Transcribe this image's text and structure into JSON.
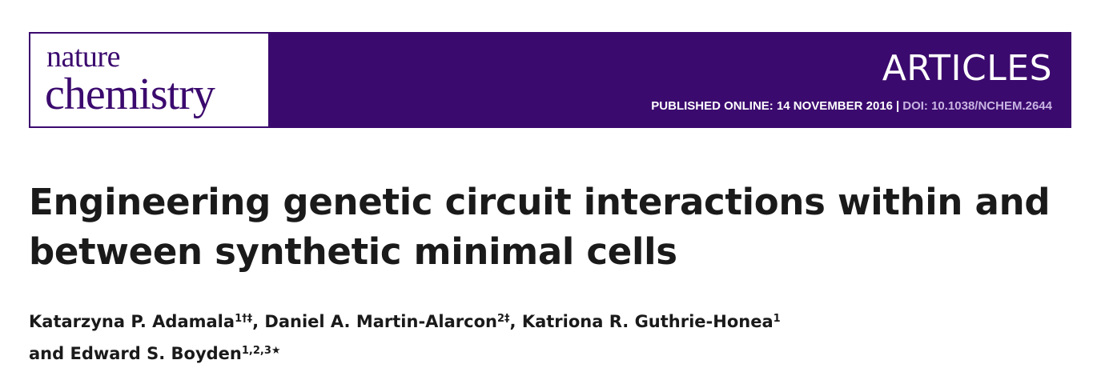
{
  "journal": {
    "name_line1": "nature",
    "name_line2": "chemistry"
  },
  "header": {
    "section": "ARTICLES",
    "published": "PUBLISHED ONLINE: 14 NOVEMBER 2016",
    "separator": "|",
    "doi": "DOI: 10.1038/NCHEM.2644",
    "colors": {
      "banner": "#3b0a6e",
      "doi_text": "#c8b4e2"
    }
  },
  "article": {
    "title_line1": "Engineering genetic circuit interactions within and",
    "title_line2": "between synthetic minimal cells"
  },
  "authors": [
    {
      "name": "Katarzyna P. Adamala",
      "marks": "1†‡",
      "sep": ", "
    },
    {
      "name": "Daniel A. Martin-Alarcon",
      "marks": "2‡",
      "sep": ", "
    },
    {
      "name": "Katriona R. Guthrie-Honea",
      "marks": "1",
      "sep": ""
    },
    {
      "prefix": "and ",
      "name": "Edward S. Boyden",
      "marks": "1,2,3★",
      "sep": ""
    }
  ]
}
